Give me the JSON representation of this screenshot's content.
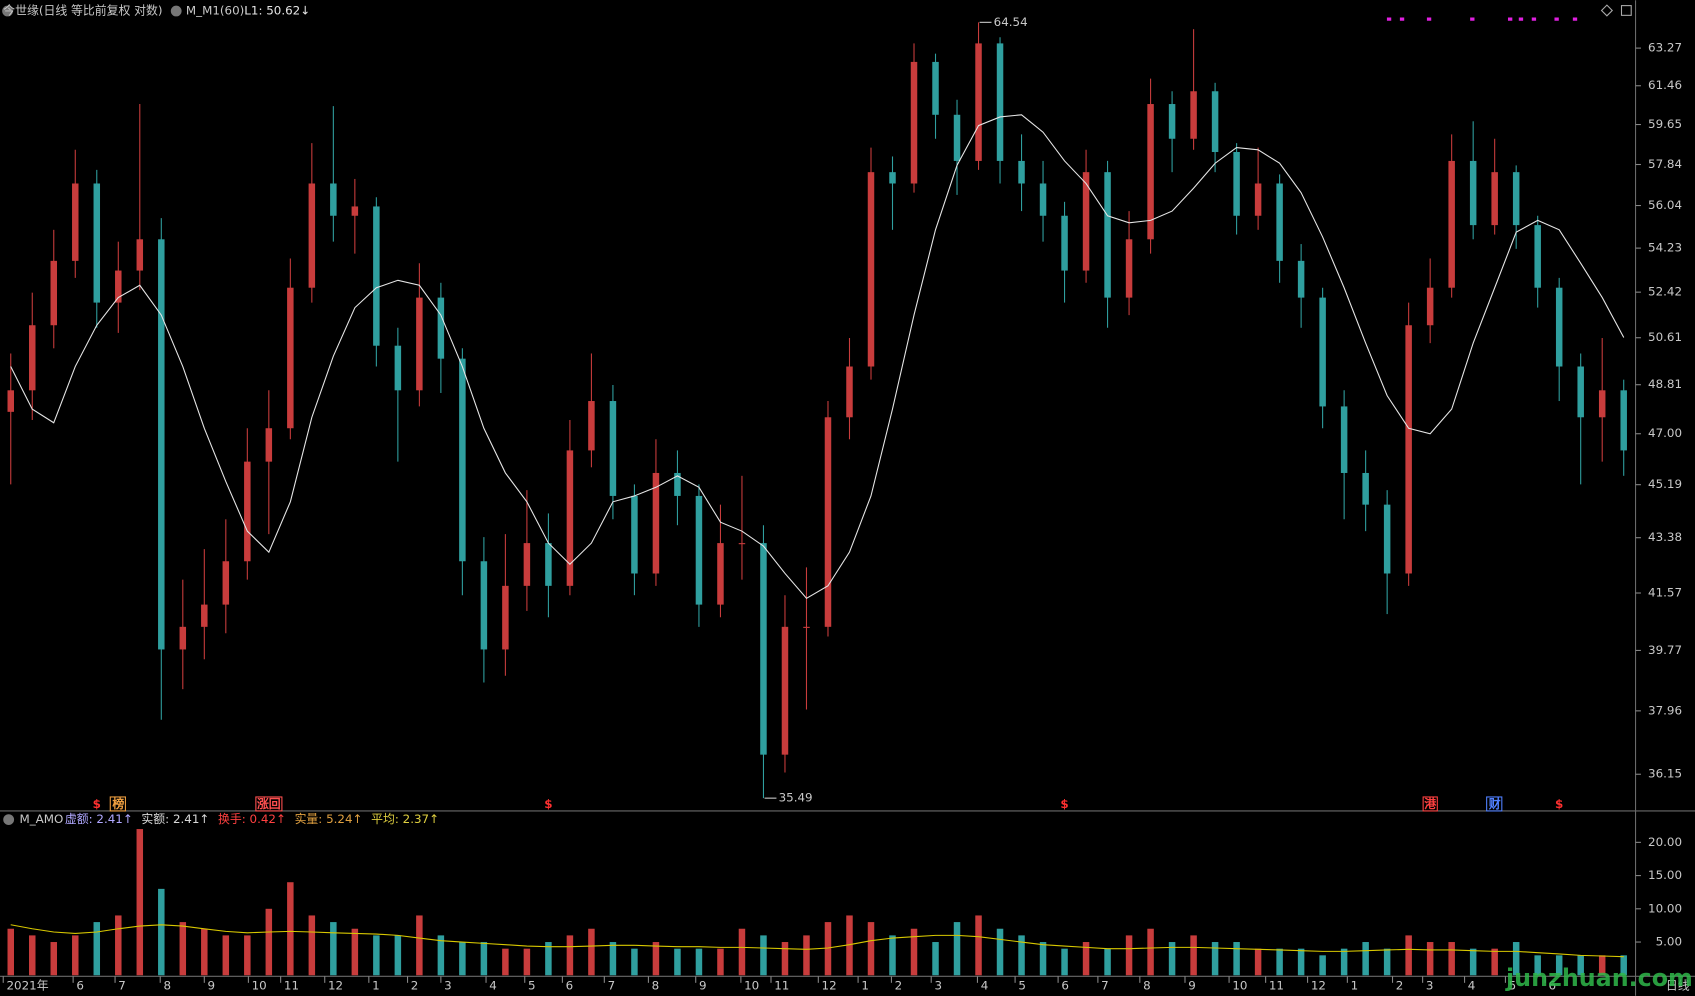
{
  "chart_data": [
    {
      "type": "candlestick",
      "title": "今世缘(日线 等比前复权 对数)",
      "indicator": "M_M1(60)",
      "indicator_value_label": "L1: 50.62↓",
      "log": true,
      "grid": false,
      "up_color": "#c83c3c",
      "down_color": "#2f9f9f",
      "xlim": [
        0,
        76
      ],
      "ylim": [
        35.2,
        65.65
      ],
      "yticks": [
        63.27,
        61.46,
        59.65,
        57.84,
        56.04,
        54.23,
        52.42,
        50.61,
        48.81,
        {
          "value": 47,
          "label": "47.00"
        },
        45.19,
        43.38,
        41.57,
        39.77,
        37.96,
        36.15
      ],
      "open": [
        47.8,
        48.6,
        51.1,
        53.7,
        57.0,
        52.0,
        53.3,
        54.6,
        39.8,
        40.5,
        41.2,
        42.6,
        46.0,
        47.2,
        52.6,
        57.0,
        55.6,
        56.0,
        50.3,
        48.6,
        52.2,
        49.8,
        42.6,
        39.8,
        41.8,
        43.2,
        41.8,
        46.4,
        48.2,
        44.8,
        42.2,
        45.6,
        44.8,
        41.2,
        43.2,
        43.2,
        36.7,
        40.5,
        40.5,
        47.6,
        49.5,
        57.5,
        57.0,
        62.6,
        60.1,
        58.0,
        63.5,
        58.0,
        57.0,
        55.6,
        53.3,
        57.5,
        52.2,
        54.6,
        60.6,
        59.0,
        61.2,
        58.4,
        55.6,
        57.0,
        53.7,
        52.2,
        48.0,
        45.6,
        44.5,
        42.2,
        51.1,
        52.6,
        58.0,
        55.2,
        57.5,
        55.2,
        52.6,
        49.5,
        47.6,
        48.6
      ],
      "high": [
        50.0,
        52.4,
        55.0,
        58.5,
        57.6,
        54.5,
        60.6,
        55.5,
        42.0,
        43.0,
        44.0,
        47.2,
        48.6,
        53.8,
        58.8,
        60.5,
        57.2,
        56.4,
        51.0,
        53.6,
        52.8,
        50.2,
        43.4,
        43.5,
        45.0,
        44.2,
        47.5,
        50.0,
        48.8,
        45.2,
        46.8,
        46.4,
        45.2,
        44.5,
        45.5,
        43.8,
        41.5,
        42.4,
        48.2,
        50.6,
        58.6,
        58.2,
        63.5,
        63.0,
        60.8,
        64.54,
        63.8,
        59.2,
        58.0,
        56.2,
        58.5,
        58.0,
        55.8,
        61.8,
        61.2,
        64.2,
        61.6,
        58.8,
        58.6,
        57.4,
        54.4,
        52.6,
        48.6,
        46.4,
        45.0,
        52.0,
        53.8,
        59.2,
        59.8,
        59.0,
        57.8,
        55.6,
        53.0,
        50.0,
        50.6,
        49.0
      ],
      "low": [
        45.2,
        47.5,
        50.2,
        53.0,
        51.0,
        50.8,
        52.5,
        37.7,
        38.6,
        39.5,
        40.3,
        42.0,
        43.5,
        46.8,
        52.0,
        54.5,
        54.0,
        49.5,
        46.0,
        48.0,
        48.5,
        41.5,
        38.8,
        39.0,
        41.0,
        40.8,
        41.5,
        45.8,
        44.0,
        41.5,
        41.8,
        43.8,
        40.5,
        40.8,
        42.0,
        35.49,
        36.2,
        38.0,
        40.2,
        46.8,
        49.0,
        55.0,
        56.6,
        59.0,
        56.5,
        57.6,
        57.0,
        55.8,
        54.5,
        52.0,
        52.8,
        51.0,
        51.5,
        54.0,
        57.5,
        58.5,
        57.5,
        54.8,
        55.0,
        52.8,
        51.0,
        47.2,
        44.0,
        43.6,
        40.9,
        41.8,
        50.4,
        52.2,
        54.6,
        54.8,
        54.2,
        51.8,
        48.2,
        45.2,
        46.0,
        45.5
      ],
      "close": [
        48.6,
        51.1,
        53.7,
        57.0,
        52.0,
        53.3,
        54.6,
        39.8,
        40.5,
        41.2,
        42.6,
        46.0,
        47.2,
        52.6,
        57.0,
        55.6,
        56.0,
        50.3,
        48.6,
        52.2,
        49.8,
        42.6,
        39.8,
        41.8,
        43.2,
        41.8,
        46.4,
        48.2,
        44.8,
        42.2,
        45.6,
        44.8,
        41.2,
        43.2,
        43.2,
        36.7,
        40.5,
        40.5,
        47.6,
        49.5,
        57.5,
        57.0,
        62.6,
        60.1,
        58.0,
        63.5,
        58.0,
        57.0,
        55.6,
        53.3,
        57.5,
        52.2,
        54.6,
        60.6,
        59.0,
        61.2,
        58.4,
        55.6,
        57.0,
        53.7,
        52.2,
        48.0,
        45.6,
        44.5,
        42.2,
        51.1,
        52.6,
        58.0,
        55.2,
        57.5,
        55.2,
        52.6,
        49.5,
        47.6,
        48.6,
        46.4
      ],
      "series": [
        {
          "color": "#e6e6e6",
          "values": [
            49.5,
            47.9,
            47.4,
            49.5,
            51.1,
            52.2,
            52.7,
            51.5,
            49.5,
            47.2,
            45.3,
            43.6,
            42.9,
            44.6,
            47.6,
            49.9,
            51.8,
            52.6,
            52.9,
            52.7,
            51.5,
            49.5,
            47.2,
            45.6,
            44.6,
            43.2,
            42.5,
            43.2,
            44.6,
            44.8,
            45.1,
            45.5,
            45.1,
            43.9,
            43.6,
            43.1,
            42.2,
            41.4,
            41.8,
            42.9,
            44.8,
            47.9,
            51.5,
            55.0,
            57.8,
            59.6,
            60.0,
            60.1,
            59.3,
            58.0,
            57.0,
            55.6,
            55.3,
            55.4,
            55.8,
            56.8,
            57.9,
            58.6,
            58.5,
            57.9,
            56.6,
            54.7,
            52.6,
            50.4,
            48.4,
            47.2,
            47.0,
            47.9,
            50.4,
            52.6,
            54.9,
            55.4,
            55.0,
            53.6,
            52.2,
            50.62
          ]
        }
      ],
      "events": [
        {
          "label": "$",
          "index": 4,
          "color": "#ff3030"
        },
        {
          "label": "榜",
          "index": 5,
          "color": "#f0a040"
        },
        {
          "label": "涨回",
          "index": 12,
          "color": "#ff5050"
        },
        {
          "label": "$",
          "index": 25,
          "color": "#ff3030"
        },
        {
          "label": "$",
          "index": 49,
          "color": "#ff3030"
        },
        {
          "label": "港",
          "index": 66,
          "color": "#ff4040"
        },
        {
          "label": "财",
          "index": 69,
          "color": "#5080ff"
        },
        {
          "label": "$",
          "index": 72,
          "color": "#ff3030"
        }
      ]
    },
    {
      "type": "bar",
      "title": "M_AMO",
      "period_label": "日线",
      "readouts": [
        {
          "label": "虚额: 2.41↑",
          "color": "#b0a8ff"
        },
        {
          "label": "实额: 2.41↑",
          "color": "#d8d8d8"
        },
        {
          "label": "换手: 0.42↑",
          "color": "#ff4040"
        },
        {
          "label": "实量: 5.24↑",
          "color": "#e0a040"
        },
        {
          "label": "平均: 2.37↑",
          "color": "#e0d040"
        }
      ],
      "xlim": [
        0,
        76
      ],
      "ylim": [
        0,
        24.4
      ],
      "yticks": [
        {
          "value": 20,
          "label": "20.00"
        },
        {
          "value": 15,
          "label": "15.00"
        },
        {
          "value": 10,
          "label": "10.00"
        },
        {
          "value": 5,
          "label": "5.00"
        }
      ],
      "xticks": [
        {
          "value": 0.15,
          "label": "2021年"
        },
        {
          "value": 3.4,
          "label": "6"
        },
        {
          "value": 5.35,
          "label": "7"
        },
        {
          "value": 7.45,
          "label": "8"
        },
        {
          "value": 9.5,
          "label": "9"
        },
        {
          "value": 11.55,
          "label": "10"
        },
        {
          "value": 13.05,
          "label": "11"
        },
        {
          "value": 15.1,
          "label": "12"
        },
        {
          "value": 17.15,
          "label": "1"
        },
        {
          "value": 18.95,
          "label": "2"
        },
        {
          "value": 20.5,
          "label": "3"
        },
        {
          "value": 22.6,
          "label": "4"
        },
        {
          "value": 24.4,
          "label": "5"
        },
        {
          "value": 26.15,
          "label": "6"
        },
        {
          "value": 28.1,
          "label": "7"
        },
        {
          "value": 30.15,
          "label": "8"
        },
        {
          "value": 32.35,
          "label": "9"
        },
        {
          "value": 34.45,
          "label": "10"
        },
        {
          "value": 35.85,
          "label": "11"
        },
        {
          "value": 38.05,
          "label": "12"
        },
        {
          "value": 39.9,
          "label": "1"
        },
        {
          "value": 41.45,
          "label": "2"
        },
        {
          "value": 43.3,
          "label": "3"
        },
        {
          "value": 45.45,
          "label": "4"
        },
        {
          "value": 47.2,
          "label": "5"
        },
        {
          "value": 49.2,
          "label": "6"
        },
        {
          "value": 51.05,
          "label": "7"
        },
        {
          "value": 53,
          "label": "8"
        },
        {
          "value": 55.1,
          "label": "9"
        },
        {
          "value": 57.15,
          "label": "10"
        },
        {
          "value": 58.85,
          "label": "11"
        },
        {
          "value": 60.8,
          "label": "12"
        },
        {
          "value": 62.65,
          "label": "1"
        },
        {
          "value": 64.75,
          "label": "2"
        },
        {
          "value": 66.15,
          "label": "3"
        },
        {
          "value": 68.1,
          "label": "4"
        },
        {
          "value": 70,
          "label": "5"
        },
        {
          "value": 71.85,
          "label": "6"
        }
      ],
      "values": [
        7,
        6,
        5,
        6,
        8,
        9,
        22,
        13,
        8,
        7,
        6,
        6,
        10,
        14,
        9,
        8,
        7,
        6,
        6,
        9,
        6,
        5,
        5,
        4,
        4,
        5,
        6,
        7,
        5,
        4,
        5,
        4,
        4,
        4,
        7,
        6,
        5,
        6,
        8,
        9,
        8,
        6,
        7,
        5,
        8,
        9,
        7,
        6,
        5,
        4,
        5,
        4,
        6,
        7,
        5,
        6,
        5,
        5,
        4,
        4,
        4,
        3,
        4,
        5,
        4,
        6,
        5,
        5,
        4,
        4,
        5,
        3,
        3,
        3,
        3,
        3
      ],
      "series": [
        {
          "color": "#d8c800",
          "values": [
            7.6,
            7.0,
            6.5,
            6.3,
            6.5,
            7.0,
            7.4,
            7.6,
            7.4,
            7.0,
            6.6,
            6.4,
            6.5,
            6.6,
            6.5,
            6.4,
            6.3,
            6.2,
            6.0,
            5.6,
            5.2,
            5.0,
            4.8,
            4.6,
            4.4,
            4.3,
            4.3,
            4.4,
            4.5,
            4.5,
            4.4,
            4.3,
            4.3,
            4.2,
            4.2,
            4.1,
            4.0,
            3.9,
            4.1,
            4.6,
            5.2,
            5.6,
            5.8,
            6.0,
            6.0,
            5.8,
            5.4,
            5.0,
            4.6,
            4.4,
            4.2,
            4.0,
            4.0,
            4.1,
            4.2,
            4.2,
            4.1,
            4.0,
            3.9,
            3.8,
            3.7,
            3.6,
            3.6,
            3.7,
            3.8,
            3.9,
            3.8,
            3.8,
            3.7,
            3.6,
            3.6,
            3.4,
            3.2,
            3.0,
            2.9,
            2.8
          ]
        }
      ]
    }
  ],
  "watermark": "junzhuan.com"
}
